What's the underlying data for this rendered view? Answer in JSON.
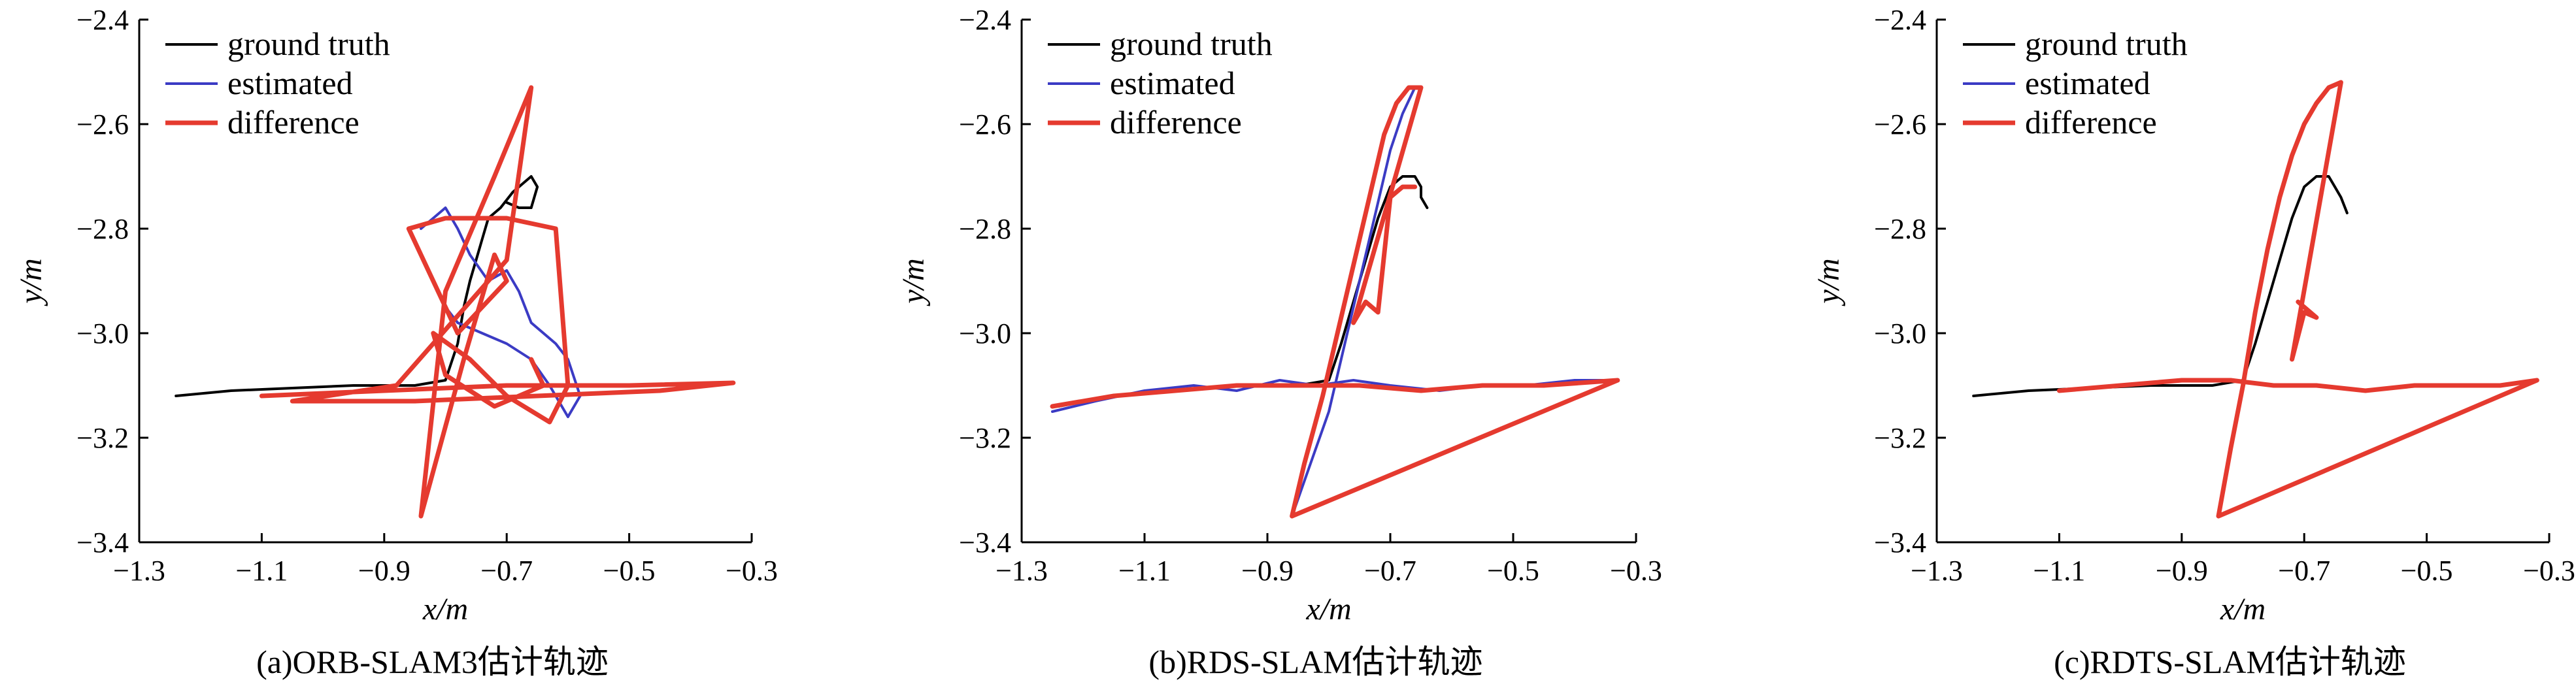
{
  "chart_data": [
    {
      "type": "line",
      "caption": "(a)ORB-SLAM3估计轨迹",
      "xlabel": "x/m",
      "ylabel": "y/m",
      "xlim": [
        -1.3,
        -0.3
      ],
      "ylim": [
        -3.4,
        -2.4
      ],
      "xticks": [
        -1.3,
        -1.1,
        -0.9,
        -0.7,
        -0.5,
        -0.3
      ],
      "xtick_labels": [
        "−1.3",
        "−1.1",
        "−0.9",
        "−0.7",
        "−0.5",
        "−0.3"
      ],
      "yticks": [
        -2.4,
        -2.6,
        -2.8,
        -3.0,
        -3.2,
        -3.4
      ],
      "ytick_labels": [
        "−2.4",
        "−2.6",
        "−2.8",
        "−3.0",
        "−3.2",
        "−3.4"
      ],
      "legend": [
        "ground truth",
        "estimated",
        "difference"
      ],
      "legend_position": "top-left",
      "grid": false,
      "series": [
        {
          "name": "ground truth",
          "color": "#000000",
          "x": [
            -1.24,
            -1.15,
            -1.05,
            -0.95,
            -0.85,
            -0.8,
            -0.78,
            -0.77,
            -0.76,
            -0.75,
            -0.74,
            -0.73,
            -0.71,
            -0.69,
            -0.67,
            -0.66,
            -0.65,
            -0.655,
            -0.66,
            -0.68,
            -0.7
          ],
          "y": [
            -3.12,
            -3.11,
            -3.105,
            -3.1,
            -3.1,
            -3.09,
            -3.02,
            -2.95,
            -2.9,
            -2.86,
            -2.82,
            -2.78,
            -2.76,
            -2.73,
            -2.71,
            -2.7,
            -2.72,
            -2.74,
            -2.76,
            -2.76,
            -2.75
          ]
        },
        {
          "name": "estimated",
          "color": "#3b3bc4",
          "x": [
            -0.84,
            -0.8,
            -0.78,
            -0.76,
            -0.73,
            -0.7,
            -0.68,
            -0.66,
            -0.62,
            -0.6,
            -0.58,
            -0.6,
            -0.63,
            -0.66,
            -0.7,
            -0.74,
            -0.78,
            -0.8
          ],
          "y": [
            -2.8,
            -2.76,
            -2.8,
            -2.85,
            -2.9,
            -2.88,
            -2.92,
            -2.98,
            -3.02,
            -3.05,
            -3.12,
            -3.16,
            -3.1,
            -3.05,
            -3.02,
            -3.0,
            -2.98,
            -2.95
          ]
        },
        {
          "name": "difference",
          "color": "#e53a2f",
          "x": [
            -1.1,
            -0.9,
            -0.7,
            -0.5,
            -0.33,
            -0.45,
            -0.65,
            -0.85,
            -1.05,
            -0.88,
            -0.7,
            -0.66,
            -0.72,
            -0.8,
            -0.84,
            -0.77,
            -0.72,
            -0.7,
            -0.74,
            -0.78,
            -0.86,
            -0.8,
            -0.7,
            -0.62,
            -0.6,
            -0.63,
            -0.7,
            -0.76,
            -0.82,
            -0.8,
            -0.72,
            -0.64,
            -0.66
          ],
          "y": [
            -3.12,
            -3.11,
            -3.1,
            -3.1,
            -3.095,
            -3.11,
            -3.12,
            -3.13,
            -3.13,
            -3.1,
            -2.86,
            -2.53,
            -2.7,
            -2.92,
            -3.35,
            -3.05,
            -2.85,
            -2.9,
            -2.95,
            -3.0,
            -2.8,
            -2.78,
            -2.78,
            -2.8,
            -3.1,
            -3.17,
            -3.12,
            -3.05,
            -3.0,
            -3.08,
            -3.14,
            -3.1,
            -3.05
          ]
        }
      ]
    },
    {
      "type": "line",
      "caption": "(b)RDS-SLAM估计轨迹",
      "xlabel": "x/m",
      "ylabel": "y/m",
      "xlim": [
        -1.3,
        -0.3
      ],
      "ylim": [
        -3.4,
        -2.4
      ],
      "xticks": [
        -1.3,
        -1.1,
        -0.9,
        -0.7,
        -0.5,
        -0.3
      ],
      "xtick_labels": [
        "−1.3",
        "−1.1",
        "−0.9",
        "−0.7",
        "−0.5",
        "−0.3"
      ],
      "yticks": [
        -2.4,
        -2.6,
        -2.8,
        -3.0,
        -3.2,
        -3.4
      ],
      "ytick_labels": [
        "−2.4",
        "−2.6",
        "−2.8",
        "−3.0",
        "−3.2",
        "−3.4"
      ],
      "legend": [
        "ground truth",
        "estimated",
        "difference"
      ],
      "legend_position": "top-left",
      "grid": false,
      "series": [
        {
          "name": "ground truth",
          "color": "#000000",
          "x": [
            -1.24,
            -1.15,
            -1.05,
            -0.95,
            -0.85,
            -0.8,
            -0.78,
            -0.76,
            -0.74,
            -0.72,
            -0.7,
            -0.68,
            -0.66,
            -0.65,
            -0.65,
            -0.64
          ],
          "y": [
            -3.14,
            -3.12,
            -3.11,
            -3.1,
            -3.1,
            -3.09,
            -3.02,
            -2.94,
            -2.86,
            -2.78,
            -2.72,
            -2.7,
            -2.7,
            -2.72,
            -2.74,
            -2.76
          ]
        },
        {
          "name": "estimated",
          "color": "#3b3bc4",
          "x": [
            -1.25,
            -1.18,
            -1.1,
            -1.02,
            -0.95,
            -0.88,
            -0.82,
            -0.76,
            -0.7,
            -0.62,
            -0.55,
            -0.48,
            -0.4,
            -0.33,
            -0.86,
            -0.83,
            -0.8,
            -0.78,
            -0.76,
            -0.74,
            -0.72,
            -0.7,
            -0.68,
            -0.66
          ],
          "y": [
            -3.15,
            -3.13,
            -3.11,
            -3.1,
            -3.11,
            -3.09,
            -3.1,
            -3.09,
            -3.1,
            -3.11,
            -3.1,
            -3.1,
            -3.09,
            -3.09,
            -3.35,
            -3.25,
            -3.15,
            -3.05,
            -2.95,
            -2.85,
            -2.75,
            -2.65,
            -2.58,
            -2.53
          ]
        },
        {
          "name": "difference",
          "color": "#e53a2f",
          "x": [
            -1.25,
            -1.15,
            -1.05,
            -0.95,
            -0.85,
            -0.75,
            -0.65,
            -0.55,
            -0.45,
            -0.33,
            -0.86,
            -0.84,
            -0.81,
            -0.79,
            -0.77,
            -0.75,
            -0.73,
            -0.71,
            -0.69,
            -0.67,
            -0.65,
            -0.76,
            -0.74,
            -0.72,
            -0.7,
            -0.68,
            -0.66
          ],
          "y": [
            -3.14,
            -3.12,
            -3.11,
            -3.1,
            -3.1,
            -3.1,
            -3.11,
            -3.1,
            -3.1,
            -3.09,
            -3.35,
            -3.25,
            -3.12,
            -3.02,
            -2.92,
            -2.82,
            -2.72,
            -2.62,
            -2.56,
            -2.53,
            -2.53,
            -2.98,
            -2.94,
            -2.96,
            -2.74,
            -2.72,
            -2.72
          ]
        }
      ]
    },
    {
      "type": "line",
      "caption": "(c)RDTS-SLAM估计轨迹",
      "xlabel": "x/m",
      "ylabel": "y/m",
      "xlim": [
        -1.3,
        -0.3
      ],
      "ylim": [
        -3.4,
        -2.4
      ],
      "xticks": [
        -1.3,
        -1.1,
        -0.9,
        -0.7,
        -0.5,
        -0.3
      ],
      "xtick_labels": [
        "−1.3",
        "−1.1",
        "−0.9",
        "−0.7",
        "−0.5",
        "−0.3"
      ],
      "yticks": [
        -2.4,
        -2.6,
        -2.8,
        -3.0,
        -3.2,
        -3.4
      ],
      "ytick_labels": [
        "−2.4",
        "−2.6",
        "−2.8",
        "−3.0",
        "−3.2",
        "−3.4"
      ],
      "legend": [
        "ground truth",
        "estimated",
        "difference"
      ],
      "legend_position": "top-left",
      "grid": false,
      "series": [
        {
          "name": "ground truth",
          "color": "#000000",
          "x": [
            -1.24,
            -1.15,
            -1.05,
            -0.95,
            -0.85,
            -0.8,
            -0.78,
            -0.76,
            -0.74,
            -0.72,
            -0.7,
            -0.68,
            -0.66,
            -0.65,
            -0.64,
            -0.63
          ],
          "y": [
            -3.12,
            -3.11,
            -3.105,
            -3.1,
            -3.1,
            -3.09,
            -3.02,
            -2.94,
            -2.86,
            -2.78,
            -2.72,
            -2.7,
            -2.7,
            -2.72,
            -2.74,
            -2.77
          ]
        },
        {
          "name": "estimated",
          "color": "#3b3bc4",
          "x": [
            -1.1,
            -1.0,
            -0.9,
            -0.82,
            -0.75,
            -0.68,
            -0.6,
            -0.52,
            -0.44,
            -0.38,
            -0.32,
            -0.84,
            -0.82,
            -0.8,
            -0.78,
            -0.76,
            -0.74,
            -0.72,
            -0.7,
            -0.68,
            -0.66,
            -0.64
          ],
          "y": [
            -3.11,
            -3.1,
            -3.09,
            -3.09,
            -3.1,
            -3.1,
            -3.11,
            -3.1,
            -3.1,
            -3.1,
            -3.09,
            -3.35,
            -3.22,
            -3.1,
            -2.96,
            -2.84,
            -2.74,
            -2.66,
            -2.6,
            -2.56,
            -2.53,
            -2.52
          ]
        },
        {
          "name": "difference",
          "color": "#e53a2f",
          "x": [
            -1.1,
            -1.0,
            -0.9,
            -0.82,
            -0.75,
            -0.68,
            -0.6,
            -0.52,
            -0.44,
            -0.38,
            -0.32,
            -0.84,
            -0.82,
            -0.8,
            -0.78,
            -0.76,
            -0.74,
            -0.72,
            -0.7,
            -0.68,
            -0.66,
            -0.64,
            -0.72,
            -0.7,
            -0.68,
            -0.71
          ],
          "y": [
            -3.11,
            -3.1,
            -3.09,
            -3.09,
            -3.1,
            -3.1,
            -3.11,
            -3.1,
            -3.1,
            -3.1,
            -3.09,
            -3.35,
            -3.22,
            -3.1,
            -2.96,
            -2.84,
            -2.74,
            -2.66,
            -2.6,
            -2.56,
            -2.53,
            -2.52,
            -3.05,
            -2.96,
            -2.97,
            -2.94
          ]
        }
      ]
    }
  ]
}
